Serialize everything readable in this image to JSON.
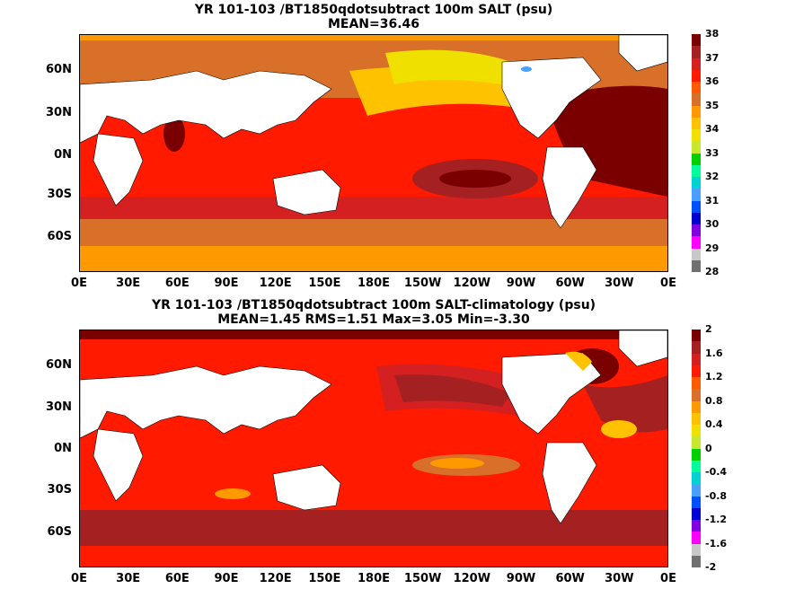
{
  "panel1": {
    "title": "YR 101-103 /BT1850qdotsubtract 100m SALT (psu)",
    "subtitle": "MEAN=36.46",
    "colorbar": {
      "labels": [
        "38",
        "37",
        "36",
        "35",
        "34",
        "33",
        "32",
        "31",
        "30",
        "29",
        "28"
      ],
      "colors": [
        "#7a0000",
        "#a52020",
        "#d42020",
        "#ff1a00",
        "#ff5a00",
        "#d9702a",
        "#ff9900",
        "#ffc200",
        "#f0e000",
        "#c8e830",
        "#00d000",
        "#00ff9a",
        "#00d2d2",
        "#4aa0ff",
        "#0050ff",
        "#0000d0",
        "#8000e0",
        "#ff00ff",
        "#c8c8c8",
        "#707070"
      ]
    }
  },
  "panel2": {
    "title": "YR 101-103 /BT1850qdotsubtract 100m SALT-climatology (psu)",
    "subtitle": "MEAN=1.45   RMS=1.51   Max=3.05   Min=-3.30",
    "colorbar": {
      "labels": [
        "2",
        "1.6",
        "1.2",
        "0.8",
        "0.4",
        "0",
        "-0.4",
        "-0.8",
        "-1.2",
        "-1.6",
        "-2"
      ],
      "colors": [
        "#7a0000",
        "#a52020",
        "#d42020",
        "#ff1a00",
        "#ff5a00",
        "#d9702a",
        "#ff9900",
        "#ffc200",
        "#f0e000",
        "#c8e830",
        "#00d000",
        "#00ff9a",
        "#00d2d2",
        "#4aa0ff",
        "#0050ff",
        "#0000d0",
        "#8000e0",
        "#ff00ff",
        "#c8c8c8",
        "#707070"
      ]
    }
  },
  "lat_labels": [
    "60N",
    "30N",
    "0N",
    "30S",
    "60S"
  ],
  "lon_labels": [
    "0E",
    "30E",
    "60E",
    "90E",
    "120E",
    "150E",
    "180E",
    "150W",
    "120W",
    "90W",
    "60W",
    "30W",
    "0E"
  ]
}
